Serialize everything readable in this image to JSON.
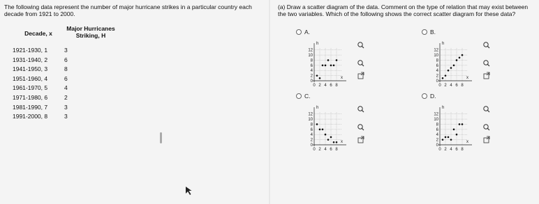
{
  "intro": "The following data represent the number of major hurricane strikes in a particular country each decade from 1921 to 2000.",
  "table": {
    "headers": [
      "Decade, x",
      "Major Hurricanes Striking, H"
    ],
    "rows": [
      [
        "1921-1930, 1",
        "3"
      ],
      [
        "1931-1940, 2",
        "6"
      ],
      [
        "1941-1950, 3",
        "8"
      ],
      [
        "1951-1960, 4",
        "6"
      ],
      [
        "1961-1970, 5",
        "4"
      ],
      [
        "1971-1980, 6",
        "2"
      ],
      [
        "1981-1990, 7",
        "3"
      ],
      [
        "1991-2000, 8",
        "3"
      ]
    ]
  },
  "question": "(a) Draw a scatter diagram of the data. Comment on the type of relation that may exist between the two variables. Which of the following shows the correct scatter diagram for these data?",
  "options": [
    {
      "letter": "A.",
      "ylabel": "h",
      "xlabel": "x",
      "xlim": [
        0,
        10
      ],
      "ylim": [
        0,
        13
      ],
      "xticks": [
        0,
        2,
        4,
        6,
        8
      ],
      "yticks": [
        0,
        2,
        4,
        6,
        8,
        10,
        12
      ],
      "x": [
        1,
        2,
        3,
        4,
        5,
        6,
        7,
        8
      ],
      "y": [
        2,
        1,
        6,
        6,
        8,
        6,
        6,
        8
      ]
    },
    {
      "letter": "B.",
      "ylabel": "h",
      "xlabel": "x",
      "xlim": [
        0,
        10
      ],
      "ylim": [
        0,
        13
      ],
      "xticks": [
        0,
        2,
        4,
        6,
        8
      ],
      "yticks": [
        0,
        2,
        4,
        6,
        8,
        10,
        12
      ],
      "x": [
        1,
        2,
        3,
        4,
        5,
        6,
        7,
        8
      ],
      "y": [
        1,
        2,
        4,
        5,
        6,
        8,
        9,
        10
      ]
    },
    {
      "letter": "C.",
      "ylabel": "h",
      "xlabel": "x",
      "xlim": [
        0,
        10
      ],
      "ylim": [
        0,
        13
      ],
      "xticks": [
        0,
        2,
        4,
        6,
        8
      ],
      "yticks": [
        0,
        2,
        4,
        6,
        8,
        10,
        12
      ],
      "x": [
        1,
        2,
        3,
        4,
        5,
        6,
        7,
        8
      ],
      "y": [
        8,
        6,
        6,
        4,
        2,
        3,
        1,
        1
      ]
    },
    {
      "letter": "D.",
      "ylabel": "h",
      "xlabel": "x",
      "xlim": [
        0,
        10
      ],
      "ylim": [
        0,
        13
      ],
      "xticks": [
        0,
        2,
        4,
        6,
        8
      ],
      "yticks": [
        0,
        2,
        4,
        6,
        8,
        10,
        12
      ],
      "x": [
        1,
        2,
        3,
        4,
        5,
        6,
        7,
        8
      ],
      "y": [
        2,
        3,
        3,
        2,
        6,
        4,
        8,
        8
      ]
    }
  ]
}
